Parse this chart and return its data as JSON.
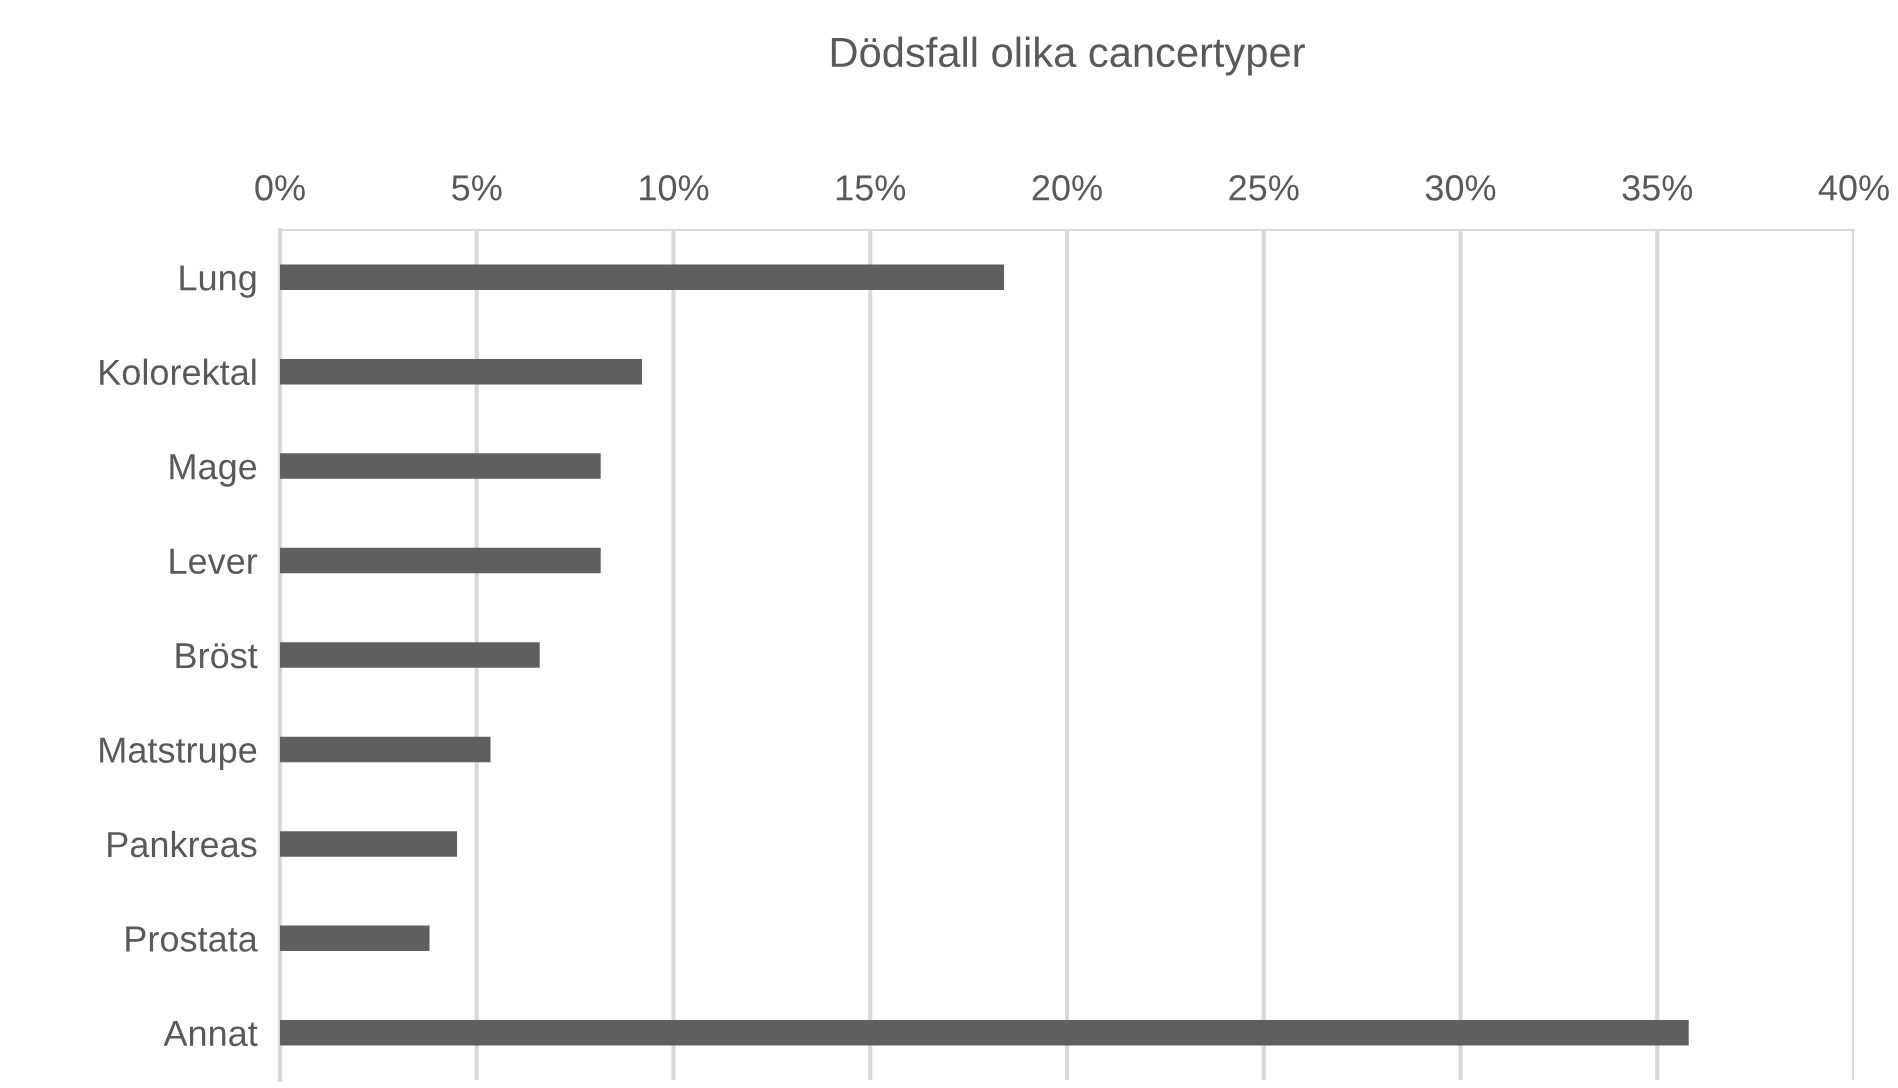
{
  "chart_data": {
    "type": "bar",
    "orientation": "horizontal",
    "title": "Dödsfall olika cancertyper",
    "categories": [
      "Lung",
      "Kolorektal",
      "Mage",
      "Lever",
      "Bröst",
      "Matstrupe",
      "Pankreas",
      "Prostata",
      "Annat"
    ],
    "values": [
      18.4,
      9.2,
      8.15,
      8.15,
      6.6,
      5.35,
      4.5,
      3.8,
      35.8
    ],
    "color": "#5f5f5f",
    "xlim": [
      0,
      40
    ],
    "xticks": [
      {
        "value": 0,
        "label": "0%"
      },
      {
        "value": 5,
        "label": "5%"
      },
      {
        "value": 10,
        "label": "10%"
      },
      {
        "value": 15,
        "label": "15%"
      },
      {
        "value": 20,
        "label": "20%"
      },
      {
        "value": 25,
        "label": "25%"
      },
      {
        "value": 30,
        "label": "30%"
      },
      {
        "value": 35,
        "label": "35%"
      },
      {
        "value": 40,
        "label": "40%"
      }
    ],
    "grid": "x"
  }
}
